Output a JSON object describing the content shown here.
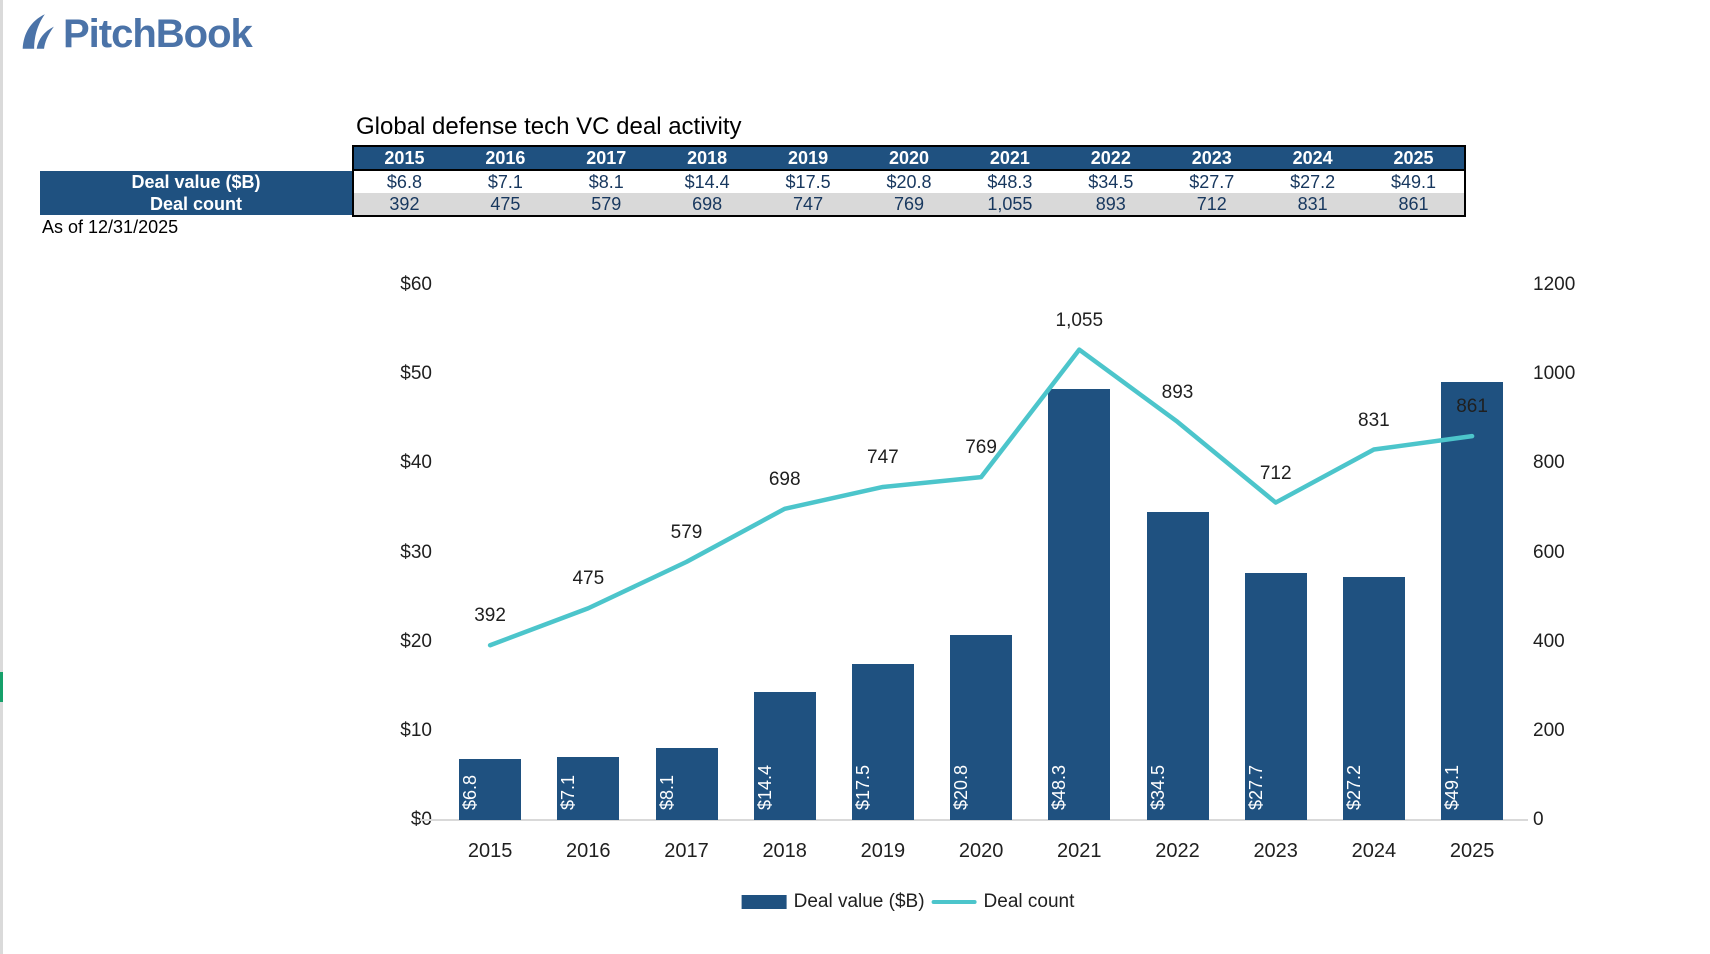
{
  "logo": {
    "text": "PitchBook"
  },
  "header": {
    "title": "Global defense tech VC deal activity",
    "as_of": "As of 12/31/2025"
  },
  "table": {
    "years": [
      "2015",
      "2016",
      "2017",
      "2018",
      "2019",
      "2020",
      "2021",
      "2022",
      "2023",
      "2024",
      "2025"
    ],
    "rows": [
      {
        "label": "Deal value ($B)",
        "cells": [
          "$6.8",
          "$7.1",
          "$8.1",
          "$14.4",
          "$17.5",
          "$20.8",
          "$48.3",
          "$34.5",
          "$27.7",
          "$27.2",
          "$49.1"
        ]
      },
      {
        "label": "Deal count",
        "cells": [
          "392",
          "475",
          "579",
          "698",
          "747",
          "769",
          "1,055",
          "893",
          "712",
          "831",
          "861"
        ]
      }
    ]
  },
  "chart_data": {
    "type": "combo-bar-line",
    "title": "Global defense tech VC deal activity",
    "categories": [
      "2015",
      "2016",
      "2017",
      "2018",
      "2019",
      "2020",
      "2021",
      "2022",
      "2023",
      "2024",
      "2025"
    ],
    "series": [
      {
        "name": "Deal value ($B)",
        "type": "bar",
        "axis": "left",
        "color": "#1f5180",
        "values": [
          6.8,
          7.1,
          8.1,
          14.4,
          17.5,
          20.8,
          48.3,
          34.5,
          27.7,
          27.2,
          49.1
        ],
        "labels": [
          "$6.8",
          "$7.1",
          "$8.1",
          "$14.4",
          "$17.5",
          "$20.8",
          "$48.3",
          "$34.5",
          "$27.7",
          "$27.2",
          "$49.1"
        ]
      },
      {
        "name": "Deal count",
        "type": "line",
        "axis": "right",
        "color": "#4cc5cb",
        "values": [
          392,
          475,
          579,
          698,
          747,
          769,
          1055,
          893,
          712,
          831,
          861
        ],
        "labels": [
          "392",
          "475",
          "579",
          "698",
          "747",
          "769",
          "1,055",
          "893",
          "712",
          "831",
          "861"
        ]
      }
    ],
    "left_axis": {
      "min": 0,
      "max": 60,
      "tick_values": [
        0,
        10,
        20,
        30,
        40,
        50,
        60
      ],
      "tick_labels": [
        "$0",
        "$10",
        "$20",
        "$30",
        "$40",
        "$50",
        "$60"
      ]
    },
    "right_axis": {
      "min": 0,
      "max": 1200,
      "tick_values": [
        0,
        200,
        400,
        600,
        800,
        1000,
        1200
      ],
      "tick_labels": [
        "0",
        "200",
        "400",
        "600",
        "800",
        "1000",
        "1200"
      ]
    },
    "grid": false,
    "legend": {
      "position": "bottom",
      "items": [
        {
          "label": "Deal value ($B)",
          "swatch": "bar",
          "color": "#1f5180"
        },
        {
          "label": "Deal count",
          "swatch": "line",
          "color": "#4cc5cb"
        }
      ]
    }
  },
  "colors": {
    "bar_blue": "#1f5180",
    "line_teal": "#4cc5cb",
    "table_header_blue": "#1f5180",
    "count_row_gray": "#d9d9d9",
    "table_text_navy": "#17375e",
    "logo_blue": "#4b73a8",
    "edge_green": "#16a06a"
  }
}
